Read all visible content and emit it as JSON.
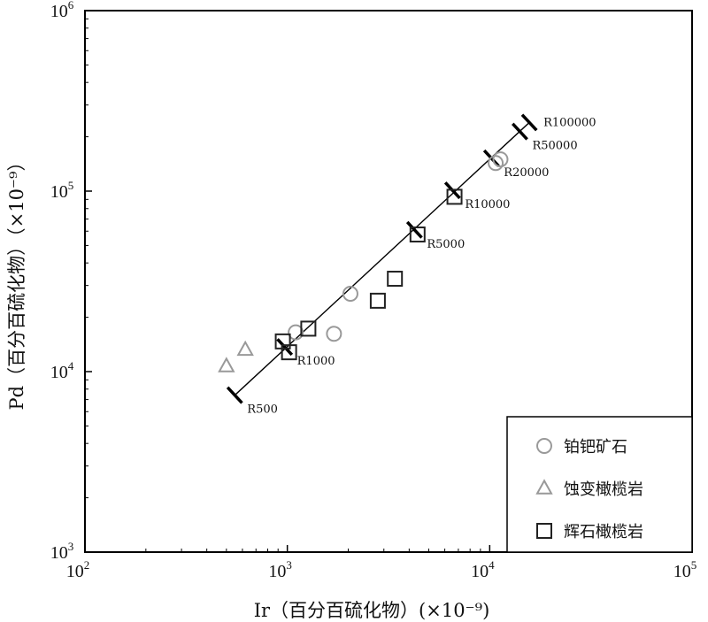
{
  "chart_data": {
    "type": "scatter",
    "title": "",
    "xlabel": "Ir（百分百硫化物）(×10⁻⁹)",
    "ylabel": "Pd（百分百硫化物）（×10⁻⁹）",
    "x_scale": "log",
    "y_scale": "log",
    "xlim": [
      100,
      100000
    ],
    "ylim": [
      1000,
      1000000
    ],
    "x_ticks": [
      {
        "value": 100,
        "base": "10",
        "exp": "2"
      },
      {
        "value": 1000,
        "base": "10",
        "exp": "3"
      },
      {
        "value": 10000,
        "base": "10",
        "exp": "4"
      },
      {
        "value": 100000,
        "base": "10",
        "exp": "5"
      }
    ],
    "y_ticks": [
      {
        "value": 1000,
        "base": "10",
        "exp": "3"
      },
      {
        "value": 10000,
        "base": "10",
        "exp": "4"
      },
      {
        "value": 100000,
        "base": "10",
        "exp": "5"
      },
      {
        "value": 1000000,
        "base": "10",
        "exp": "6"
      }
    ],
    "grid": false,
    "legend_position": "bottom-right",
    "series": [
      {
        "name": "铂钯矿石",
        "marker": "circle",
        "color": "#999999",
        "points": [
          [
            1100,
            16500
          ],
          [
            1700,
            16200
          ],
          [
            2050,
            27000
          ],
          [
            10700,
            143000
          ],
          [
            11300,
            150000
          ]
        ]
      },
      {
        "name": "蚀变橄榄岩",
        "marker": "triangle",
        "color": "#999999",
        "points": [
          [
            500,
            10700
          ],
          [
            620,
            13200
          ]
        ]
      },
      {
        "name": "辉石橄榄岩",
        "marker": "square",
        "color": "#222222",
        "points": [
          [
            950,
            14700
          ],
          [
            1020,
            12800
          ],
          [
            1270,
            17300
          ],
          [
            2800,
            24700
          ],
          [
            3400,
            32700
          ],
          [
            4400,
            57500
          ],
          [
            6700,
            93000
          ]
        ]
      }
    ],
    "ratio_line": {
      "start": [
        550,
        7400
      ],
      "end": [
        15700,
        240000
      ],
      "marks": [
        {
          "label": "R500",
          "x": 550,
          "y": 7400
        },
        {
          "label": "R1000",
          "x": 970,
          "y": 13700
        },
        {
          "label": "R5000",
          "x": 4250,
          "y": 61000
        },
        {
          "label": "R10000",
          "x": 6550,
          "y": 101000
        },
        {
          "label": "R20000",
          "x": 10200,
          "y": 152000
        },
        {
          "label": "R50000",
          "x": 14100,
          "y": 214000
        },
        {
          "label": "R100000",
          "x": 15700,
          "y": 240000
        }
      ]
    }
  }
}
